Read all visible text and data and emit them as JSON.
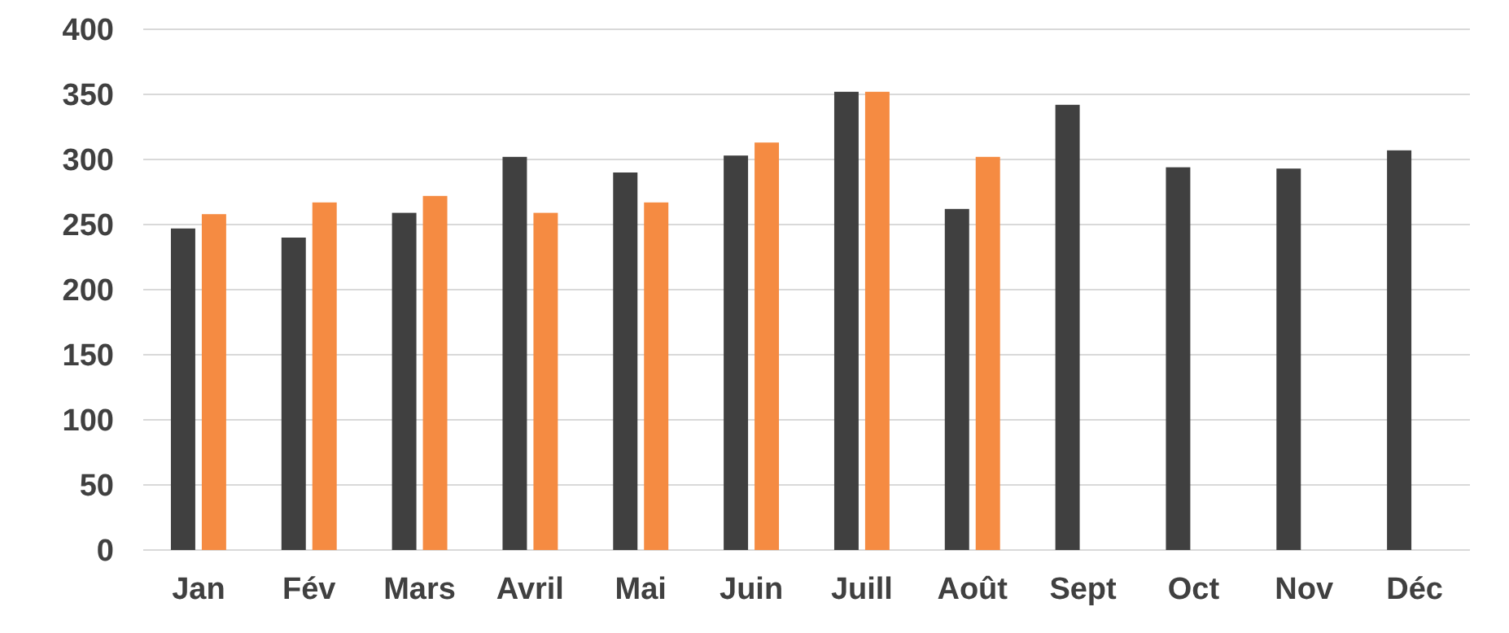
{
  "chart_data": {
    "type": "bar",
    "categories": [
      "Jan",
      "Fév",
      "Mars",
      "Avril",
      "Mai",
      "Juin",
      "Juill",
      "Août",
      "Sept",
      "Oct",
      "Nov",
      "Déc"
    ],
    "series": [
      {
        "color": "#404040",
        "values": [
          247,
          240,
          259,
          302,
          290,
          303,
          352,
          262,
          342,
          294,
          293,
          307
        ]
      },
      {
        "color": "#f58b42",
        "values": [
          258,
          267,
          272,
          259,
          267,
          313,
          352,
          302,
          null,
          null,
          null,
          null
        ]
      }
    ],
    "ylim": [
      0,
      400
    ],
    "yticks": [
      0,
      50,
      100,
      150,
      200,
      250,
      300,
      350,
      400
    ],
    "grid": "y"
  }
}
